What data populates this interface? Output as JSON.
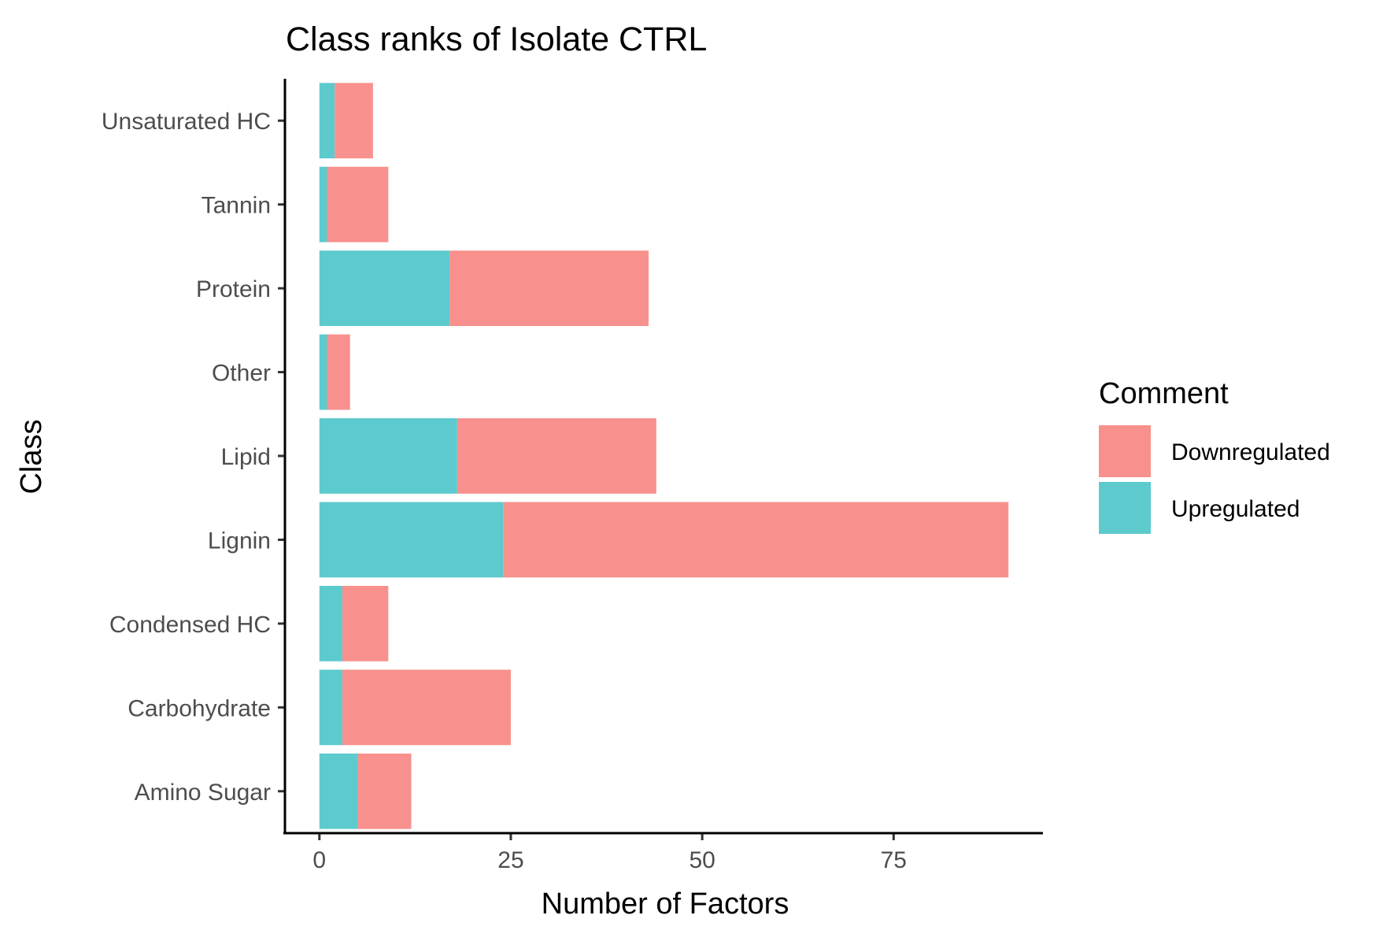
{
  "chart_data": {
    "type": "bar",
    "orientation": "horizontal",
    "stacked": true,
    "title": "Class ranks of Isolate CTRL",
    "xlabel": "Number of Factors",
    "ylabel": "Class",
    "xlim": [
      -4.5,
      94.5
    ],
    "x_ticks": [
      0,
      25,
      50,
      75
    ],
    "x_tick_labels": [
      "0",
      "25",
      "50",
      "75"
    ],
    "grid": false,
    "categories": [
      "Amino Sugar",
      "Carbohydrate",
      "Condensed HC",
      "Lignin",
      "Lipid",
      "Other",
      "Protein",
      "Tannin",
      "Unsaturated HC"
    ],
    "series": [
      {
        "name": "Downregulated",
        "color": "#F8918D",
        "values": [
          7,
          22,
          6,
          66,
          26,
          3,
          26,
          8,
          5
        ]
      },
      {
        "name": "Upregulated",
        "color": "#5DCACD",
        "values": [
          5,
          3,
          3,
          24,
          18,
          1,
          17,
          1,
          2
        ]
      }
    ],
    "legend": {
      "title": "Comment",
      "placement": "right",
      "entries": [
        "Downregulated",
        "Upregulated"
      ]
    }
  }
}
